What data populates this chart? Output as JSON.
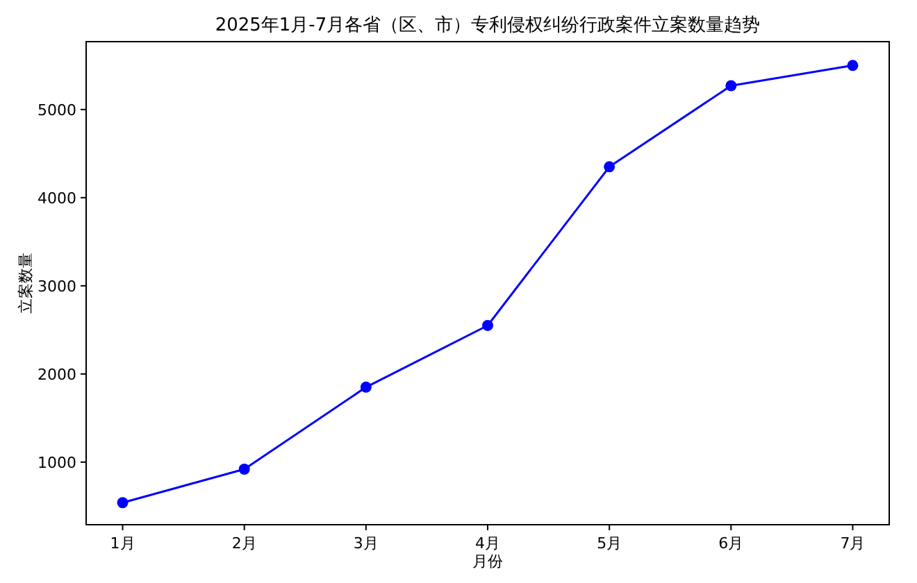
{
  "chart_data": {
    "type": "line",
    "title": "2025年1月-7月各省（区、市）专利侵权纠纷行政案件立案数量趋势",
    "xlabel": "月份",
    "ylabel": "立案数量",
    "categories": [
      "1月",
      "2月",
      "3月",
      "4月",
      "5月",
      "6月",
      "7月"
    ],
    "series": [
      {
        "color": "#0000ff",
        "values": [
          540,
          920,
          1850,
          2550,
          4350,
          5270,
          5500
        ]
      }
    ],
    "ylim": [
      290,
      5770
    ],
    "yticks": [
      1000,
      2000,
      3000,
      4000,
      5000
    ],
    "marker": "circle",
    "line_style": "solid"
  }
}
